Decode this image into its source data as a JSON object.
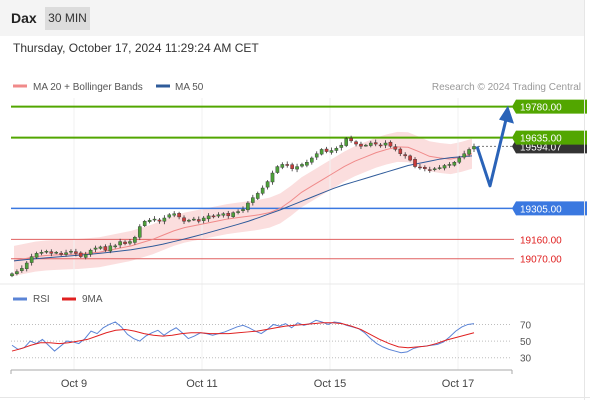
{
  "header": {
    "symbol": "Dax",
    "timeframe": "30 MIN",
    "datetime": "Thursday, October 17, 2024 11:29:24 AM CET"
  },
  "legend": {
    "ma20": "MA 20 + Bollinger Bands",
    "ma50": "MA 50",
    "credit": "Research © 2024 Trading Central",
    "rsi": "RSI",
    "rsi_ma": "9MA"
  },
  "colors": {
    "accent_green": "#52a600",
    "support_blue": "#3a78e0",
    "ma20": "#f08a8a",
    "ma50": "#2f5b9a",
    "candle_up": "#4d9f3a",
    "candle_down": "#c63c3c",
    "band_fill": "#fbdede",
    "arrow": "#2a63b8",
    "rsi_line": "#5b84d6",
    "rsi_ma_line": "#e02020",
    "level_red": "#e06060"
  },
  "chart_data": [
    {
      "type": "candlestick",
      "title": "",
      "x_labels": [
        "Oct 9",
        "Oct 11",
        "Oct 15",
        "Oct 17"
      ],
      "ylim": [
        18980,
        19820
      ],
      "levels": [
        {
          "value": 19780.0,
          "label": "19780.00",
          "kind": "resistance"
        },
        {
          "value": 19635.0,
          "label": "19635.00",
          "kind": "resistance"
        },
        {
          "value": 19594.07,
          "label": "19594.07",
          "kind": "last_price"
        },
        {
          "value": 19305.0,
          "label": "19305.00",
          "kind": "pivot"
        },
        {
          "value": 19160.0,
          "label": "19160.00",
          "kind": "support"
        },
        {
          "value": 19070.0,
          "label": "19070.00",
          "kind": "support"
        }
      ],
      "close": [
        19000,
        19010,
        19025,
        19050,
        19080,
        19095,
        19100,
        19105,
        19095,
        19100,
        19090,
        19098,
        19105,
        19095,
        19080,
        19090,
        19110,
        19120,
        19125,
        19110,
        19130,
        19130,
        19150,
        19140,
        19150,
        19170,
        19220,
        19245,
        19250,
        19255,
        19245,
        19260,
        19275,
        19280,
        19265,
        19245,
        19250,
        19255,
        19245,
        19260,
        19270,
        19265,
        19275,
        19280,
        19270,
        19285,
        19290,
        19300,
        19330,
        19355,
        19375,
        19400,
        19430,
        19470,
        19500,
        19510,
        19505,
        19490,
        19500,
        19510,
        19520,
        19540,
        19560,
        19580,
        19570,
        19575,
        19585,
        19600,
        19630,
        19620,
        19605,
        19595,
        19600,
        19610,
        19605,
        19600,
        19610,
        19595,
        19580,
        19560,
        19550,
        19530,
        19500,
        19495,
        19490,
        19485,
        19490,
        19495,
        19505,
        19510,
        19520,
        19540,
        19560,
        19580,
        19594.07
      ],
      "ma20": [
        19060,
        19070,
        19080,
        19085,
        19088,
        19090,
        19092,
        19096,
        19100,
        19110,
        19120,
        19130,
        19145,
        19160,
        19180,
        19200,
        19215,
        19225,
        19235,
        19245,
        19255,
        19262,
        19268,
        19275,
        19285,
        19305,
        19340,
        19380,
        19410,
        19440,
        19470,
        19500,
        19525,
        19545,
        19565,
        19580,
        19592,
        19590,
        19570,
        19548,
        19540,
        19535,
        19545,
        19560
      ],
      "ma50": [
        19060,
        19065,
        19070,
        19074,
        19078,
        19082,
        19086,
        19090,
        19095,
        19100,
        19106,
        19112,
        19120,
        19128,
        19138,
        19150,
        19162,
        19175,
        19188,
        19202,
        19216,
        19230,
        19245,
        19262,
        19280,
        19298,
        19318,
        19338,
        19358,
        19378,
        19398,
        19415,
        19430,
        19445,
        19460,
        19475,
        19490,
        19505,
        19515,
        19525,
        19535,
        19542,
        19546,
        19550
      ]
    },
    {
      "type": "line",
      "title": "",
      "ylim": [
        20,
        85
      ],
      "yticks": [
        70,
        50,
        30
      ],
      "series": [
        {
          "name": "RSI",
          "values": [
            45,
            40,
            42,
            50,
            47,
            52,
            45,
            38,
            44,
            50,
            49,
            47,
            53,
            62,
            59,
            66,
            70,
            73,
            67,
            58,
            53,
            50,
            56,
            60,
            63,
            57,
            62,
            66,
            60,
            53,
            56,
            60,
            59,
            57,
            59,
            61,
            64,
            67,
            69,
            66,
            62,
            59,
            64,
            70,
            68,
            71,
            66,
            72,
            69,
            71,
            75,
            73,
            70,
            73,
            72,
            69,
            67,
            65,
            60,
            53,
            47,
            43,
            40,
            38,
            36,
            37,
            41,
            43,
            44,
            45,
            46,
            49,
            55,
            62,
            67,
            70,
            71
          ]
        },
        {
          "name": "9MA",
          "values": [
            38,
            41,
            45,
            48,
            48,
            47,
            48,
            50,
            52,
            56,
            60,
            63,
            64,
            62,
            59,
            57,
            56,
            57,
            59,
            60,
            60,
            59,
            59,
            59,
            60,
            61,
            62,
            64,
            66,
            68,
            69,
            70,
            71,
            72,
            72,
            71,
            68,
            64,
            58,
            52,
            47,
            43,
            42,
            43,
            44,
            47,
            51,
            54,
            57,
            60
          ]
        }
      ]
    }
  ]
}
